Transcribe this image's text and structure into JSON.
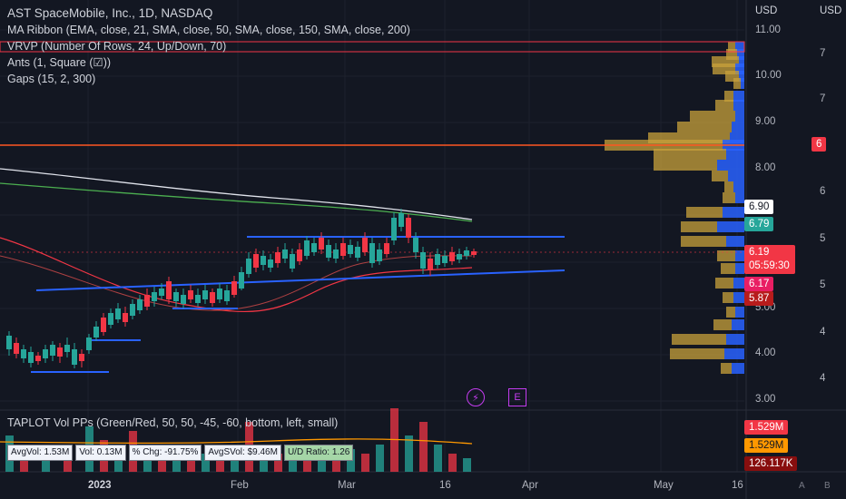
{
  "legend": {
    "title": "AST SpaceMobile, Inc., 1D, NASDAQ",
    "indicators": [
      "MA Ribbon (EMA, close, 21, SMA, close, 50, SMA, close, 150, SMA, close, 200)",
      "VRVP (Number Of Rows, 24, Up/Down, 70)",
      "Ants (1, Square (☑))",
      "Gaps (15, 2, 300)"
    ]
  },
  "volume_pane": {
    "title": "TAPLOT Vol PPs (Green/Red, 50, 50, -45, -60, bottom, left, small)",
    "stats": [
      "AvgVol: 1.53M",
      "Vol: 0.13M",
      "% Chg: -91.75%",
      "AvgSVol: $9.46M",
      "U/D Ratio: 1.26"
    ]
  },
  "currency": {
    "left": "USD",
    "right": "USD"
  },
  "price_axis": [
    "11.00",
    "10.00",
    "9.00",
    "8.00",
    "5.00",
    "4.00",
    "3.00"
  ],
  "right_axis": [
    {
      "v": "7",
      "y": 60
    },
    {
      "v": "7",
      "y": 110
    },
    {
      "v": "6",
      "y": 212
    },
    {
      "v": "5",
      "y": 264
    },
    {
      "v": "5",
      "y": 315
    },
    {
      "v": "4",
      "y": 367
    },
    {
      "v": "4",
      "y": 418
    }
  ],
  "price_tags": {
    "t690": "6.90",
    "t679": "6.79",
    "t619": "6.19",
    "timer": "05:59:30",
    "t617": "6.17",
    "t587": "5.87",
    "right6": "6"
  },
  "volume_tags": {
    "v1": "1.529M",
    "v2": "1.529M",
    "v3": "126.117K"
  },
  "time_axis": [
    "2023",
    "Feb",
    "Mar",
    "16",
    "Apr",
    "May",
    "16"
  ],
  "events": {
    "split": "⚡",
    "earnings": "E"
  },
  "corner": {
    "a": "A",
    "b": "B"
  },
  "colors": {
    "up": "#26a69a",
    "down": "#f23645",
    "ema21": "#f23645",
    "sma50": "#4caf50",
    "sma150": "#e0e3eb",
    "blue_line": "#2962ff",
    "red_line": "#f23645",
    "vrvp_up": "#2962ff",
    "vrvp_down": "#c8a13b"
  }
}
